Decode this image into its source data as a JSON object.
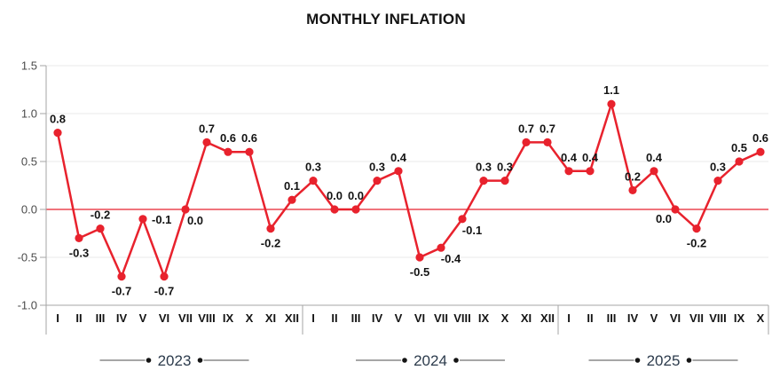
{
  "title": "MONTHLY INFLATION",
  "colors": {
    "series": "#e8222d",
    "zero_line": "#e8222d",
    "grid": "#e9e9e9",
    "axis": "#a6a6a6",
    "data_label": "#141414",
    "y_tick_label": "#4b4b4b",
    "month_label": "#141414",
    "year_label": "#2c3b4c",
    "year_line": "#707070",
    "year_dot": "#141414",
    "background": "#ffffff"
  },
  "y_axis": {
    "ticks": [
      "1.5",
      "1.0",
      "0.5",
      "0.0",
      "-0.5",
      "-1.0"
    ]
  },
  "chart_data": {
    "type": "line",
    "title": "MONTHLY INFLATION",
    "xlabel": "",
    "ylabel": "",
    "ylim": [
      -1.0,
      1.5
    ],
    "ytick_interval": 0.5,
    "grid": true,
    "zero_line": true,
    "marker": "circle",
    "legend": "none",
    "groups": [
      {
        "year": "2023",
        "months": [
          "I",
          "II",
          "III",
          "IV",
          "V",
          "VI",
          "VII",
          "VIII",
          "IX",
          "X",
          "XI",
          "XII"
        ],
        "values": [
          0.8,
          -0.3,
          -0.2,
          -0.7,
          -0.1,
          -0.7,
          0.0,
          0.7,
          0.6,
          0.6,
          -0.2,
          0.1
        ],
        "label_pos": [
          "above",
          "below",
          "above",
          "below",
          "right",
          "below",
          "below-right",
          "above",
          "above",
          "above",
          "below",
          "above"
        ]
      },
      {
        "year": "2024",
        "months": [
          "I",
          "II",
          "III",
          "IV",
          "V",
          "VI",
          "VII",
          "VIII",
          "IX",
          "X",
          "XI",
          "XII"
        ],
        "values": [
          0.3,
          0.0,
          0.0,
          0.3,
          0.4,
          -0.5,
          -0.4,
          -0.1,
          0.3,
          0.3,
          0.7,
          0.7
        ],
        "label_pos": [
          "above",
          "above",
          "above",
          "above",
          "above",
          "below",
          "below-right",
          "below-right",
          "above",
          "above",
          "above",
          "above"
        ]
      },
      {
        "year": "2025",
        "months": [
          "I",
          "II",
          "III",
          "IV",
          "V",
          "VI",
          "VII",
          "VIII",
          "IX",
          "X"
        ],
        "values": [
          0.4,
          0.4,
          1.1,
          0.2,
          0.4,
          0.0,
          -0.2,
          0.3,
          0.5,
          0.6
        ],
        "label_pos": [
          "above",
          "above",
          "above",
          "above",
          "above",
          "below-left",
          "below",
          "above",
          "above",
          "above"
        ]
      }
    ]
  }
}
